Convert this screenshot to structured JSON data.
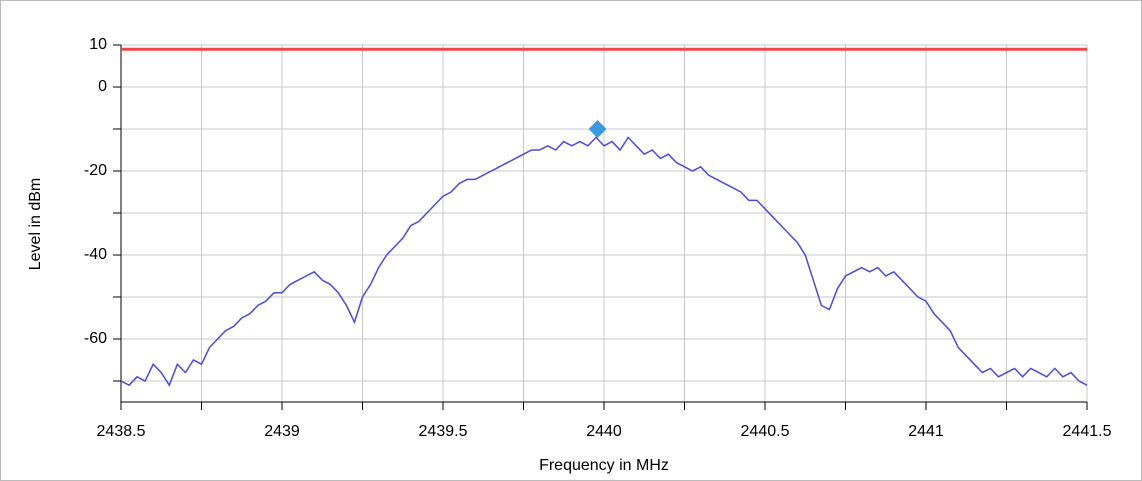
{
  "chart_data": {
    "type": "line",
    "xlabel": "Frequency in MHz",
    "ylabel": "Level in dBm",
    "x": [
      2438.5,
      2438.525,
      2438.55,
      2438.575,
      2438.6,
      2438.625,
      2438.65,
      2438.675,
      2438.7,
      2438.725,
      2438.75,
      2438.775,
      2438.8,
      2438.825,
      2438.85,
      2438.875,
      2438.9,
      2438.925,
      2438.95,
      2438.975,
      2439.0,
      2439.025,
      2439.05,
      2439.075,
      2439.1,
      2439.125,
      2439.15,
      2439.175,
      2439.2,
      2439.225,
      2439.25,
      2439.275,
      2439.3,
      2439.325,
      2439.35,
      2439.375,
      2439.4,
      2439.425,
      2439.45,
      2439.475,
      2439.5,
      2439.525,
      2439.55,
      2439.575,
      2439.6,
      2439.625,
      2439.65,
      2439.675,
      2439.7,
      2439.725,
      2439.75,
      2439.775,
      2439.8,
      2439.825,
      2439.85,
      2439.875,
      2439.9,
      2439.925,
      2439.95,
      2439.975,
      2440.0,
      2440.025,
      2440.05,
      2440.075,
      2440.1,
      2440.125,
      2440.15,
      2440.175,
      2440.2,
      2440.225,
      2440.25,
      2440.275,
      2440.3,
      2440.325,
      2440.35,
      2440.375,
      2440.4,
      2440.425,
      2440.45,
      2440.475,
      2440.5,
      2440.525,
      2440.55,
      2440.575,
      2440.6,
      2440.625,
      2440.65,
      2440.675,
      2440.7,
      2440.725,
      2440.75,
      2440.775,
      2440.8,
      2440.825,
      2440.85,
      2440.875,
      2440.9,
      2440.925,
      2440.95,
      2440.975,
      2441.0,
      2441.025,
      2441.05,
      2441.075,
      2441.1,
      2441.125,
      2441.15,
      2441.175,
      2441.2,
      2441.225,
      2441.25,
      2441.275,
      2441.3,
      2441.325,
      2441.35,
      2441.375,
      2441.4,
      2441.425,
      2441.45,
      2441.475,
      2441.5
    ],
    "values": [
      -70,
      -71,
      -69,
      -70,
      -66,
      -68,
      -71,
      -66,
      -68,
      -65,
      -66,
      -62,
      -60,
      -58,
      -57,
      -55,
      -54,
      -52,
      -51,
      -49,
      -49,
      -47,
      -46,
      -45,
      -44,
      -46,
      -47,
      -49,
      -52,
      -56,
      -50,
      -47,
      -43,
      -40,
      -38,
      -36,
      -33,
      -32,
      -30,
      -28,
      -26,
      -25,
      -23,
      -22,
      -22,
      -21,
      -20,
      -19,
      -18,
      -17,
      -16,
      -15,
      -15,
      -14,
      -15,
      -13,
      -14,
      -13,
      -14,
      -12,
      -14,
      -13,
      -15,
      -12,
      -14,
      -16,
      -15,
      -17,
      -16,
      -18,
      -19,
      -20,
      -19,
      -21,
      -22,
      -23,
      -24,
      -25,
      -27,
      -27,
      -29,
      -31,
      -33,
      -35,
      -37,
      -40,
      -46,
      -52,
      -53,
      -48,
      -45,
      -44,
      -43,
      -44,
      -43,
      -45,
      -44,
      -46,
      -48,
      -50,
      -51,
      -54,
      -56,
      -58,
      -62,
      -64,
      -66,
      -68,
      -67,
      -69,
      -68,
      -67,
      -69,
      -67,
      -68,
      -69,
      -67,
      -69,
      -68,
      -70,
      -71
    ],
    "color": "#4a4ae0",
    "limit": 9,
    "limit_color": "#f04848",
    "marker": {
      "x": 2439.98,
      "y": -10,
      "color": "#3a9ae0"
    },
    "xlim": [
      2438.5,
      2441.5
    ],
    "xticks": [
      2438.5,
      2439,
      2439.5,
      2440,
      2440.5,
      2441,
      2441.5
    ],
    "xminor": [
      2438.75,
      2439.25,
      2439.75,
      2440.25,
      2440.75,
      2441.25
    ],
    "ylim": [
      -75,
      10
    ],
    "yticks": [
      10,
      0,
      -20,
      -40,
      -60
    ],
    "yminor": [
      -10,
      -30,
      -50,
      -70
    ],
    "grid": true
  }
}
